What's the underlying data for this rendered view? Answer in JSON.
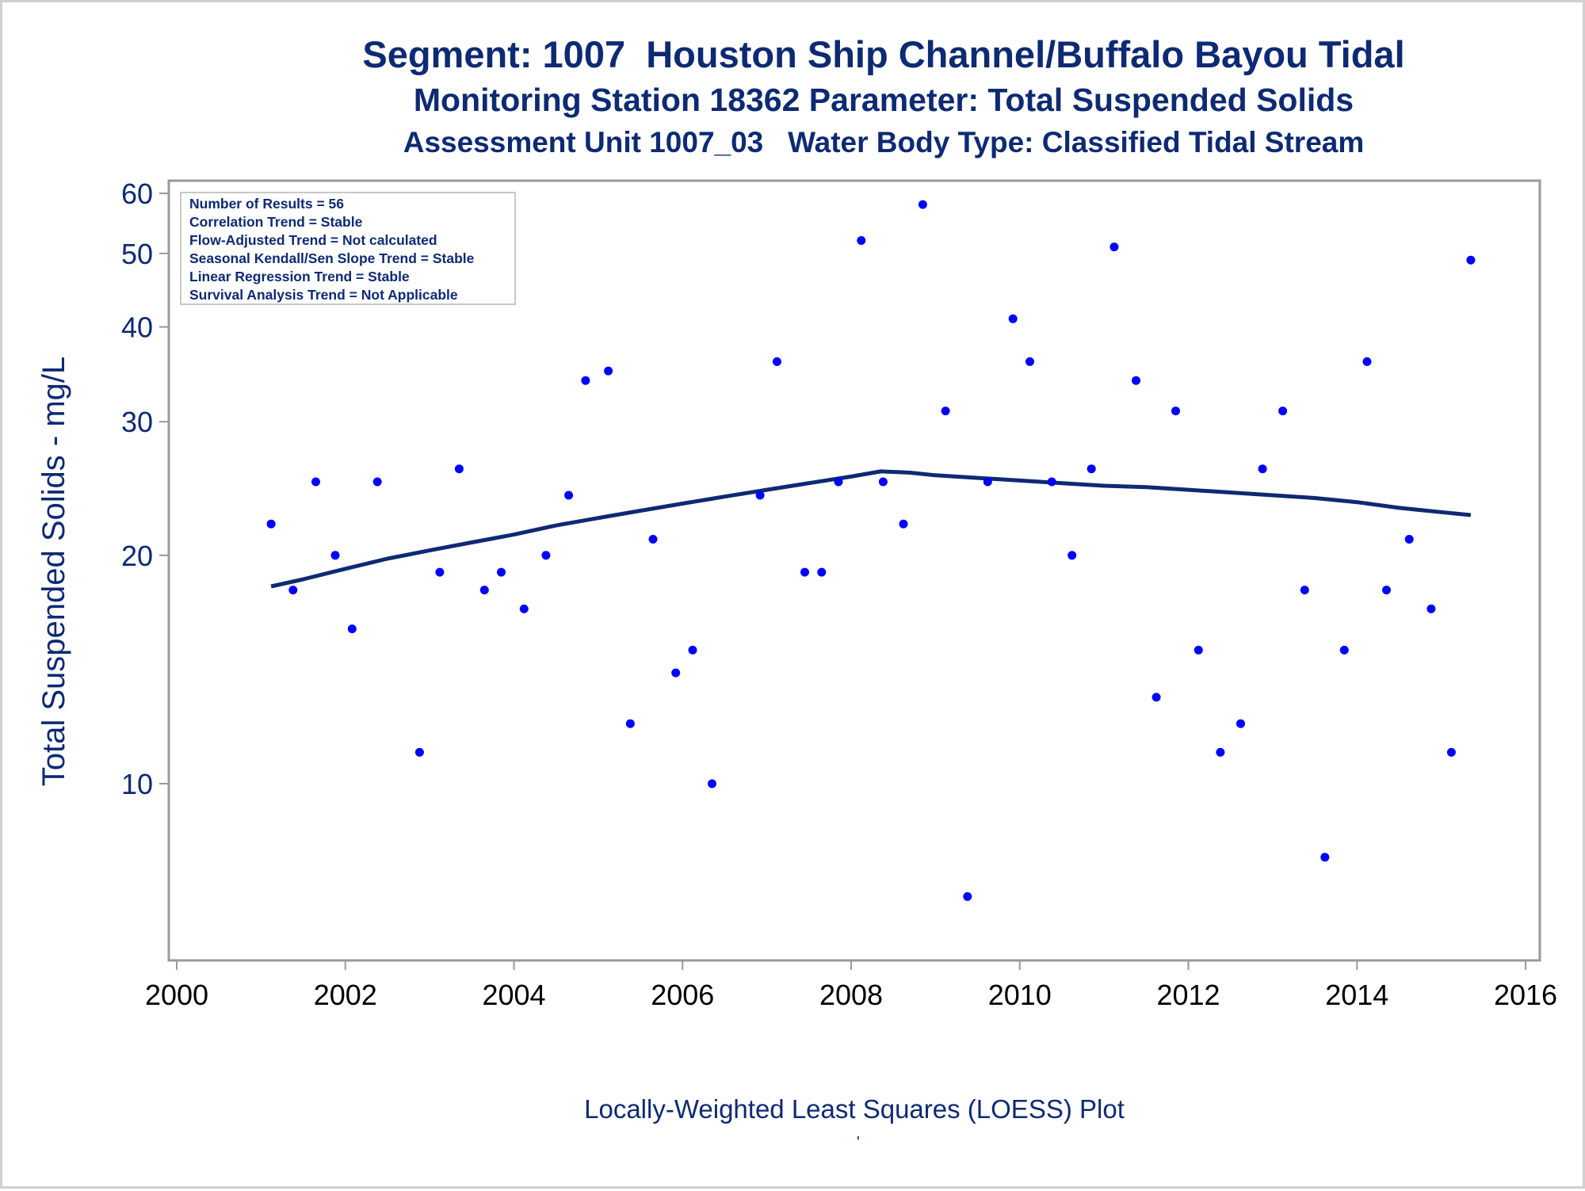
{
  "titles": {
    "line1": "Segment: 1007  Houston Ship Channel/Buffalo Bayou Tidal",
    "line2": "Monitoring Station 18362 Parameter: Total Suspended Solids",
    "line3": "Assessment Unit 1007_03   Water Body Type: Classified Tidal Stream"
  },
  "footnote": "Locally-Weighted Least Squares (LOESS) Plot",
  "footnote_mark": "'",
  "colors": {
    "text": "#0d2a73",
    "points": "#0000ff",
    "loess": "#0d2a73",
    "axis": "#9a9a9a"
  },
  "chart_data": {
    "type": "scatter",
    "xlabel": "",
    "ylabel": "Total Suspended Solids - mg/L",
    "y_scale": "log",
    "xlim": [
      2000,
      2016
    ],
    "ylim": [
      6.9,
      63
    ],
    "x_ticks": [
      2000,
      2002,
      2004,
      2006,
      2008,
      2010,
      2012,
      2014,
      2016
    ],
    "y_ticks": [
      10,
      20,
      30,
      40,
      50,
      60
    ],
    "info_box": [
      "Number of Results = 56",
      "Correlation Trend = Stable",
      "Flow-Adjusted Trend = Not calculated",
      "Seasonal Kendall/Sen Slope Trend = Stable",
      "Linear Regression Trend = Stable",
      "Survival Analysis Trend = Not Applicable"
    ],
    "legend_position": "top-left",
    "series": [
      {
        "type": "scatter",
        "points": [
          [
            2001.12,
            22
          ],
          [
            2001.38,
            18
          ],
          [
            2001.65,
            25
          ],
          [
            2001.88,
            20
          ],
          [
            2002.08,
            16
          ],
          [
            2002.38,
            25
          ],
          [
            2002.88,
            11
          ],
          [
            2003.12,
            19
          ],
          [
            2003.35,
            26
          ],
          [
            2003.65,
            18
          ],
          [
            2003.85,
            19
          ],
          [
            2004.12,
            17
          ],
          [
            2004.38,
            20
          ],
          [
            2004.65,
            24
          ],
          [
            2004.85,
            34
          ],
          [
            2005.12,
            35
          ],
          [
            2005.38,
            12
          ],
          [
            2005.65,
            21
          ],
          [
            2005.92,
            14
          ],
          [
            2006.12,
            15
          ],
          [
            2006.35,
            10
          ],
          [
            2006.92,
            24
          ],
          [
            2007.12,
            36
          ],
          [
            2007.45,
            19
          ],
          [
            2007.65,
            19
          ],
          [
            2007.85,
            25
          ],
          [
            2008.12,
            52
          ],
          [
            2008.38,
            25
          ],
          [
            2008.62,
            22
          ],
          [
            2008.85,
            58
          ],
          [
            2009.12,
            31
          ],
          [
            2009.38,
            7.1
          ],
          [
            2009.62,
            25
          ],
          [
            2009.92,
            41
          ],
          [
            2010.12,
            36
          ],
          [
            2010.38,
            25
          ],
          [
            2010.62,
            20
          ],
          [
            2010.85,
            26
          ],
          [
            2011.12,
            51
          ],
          [
            2011.38,
            34
          ],
          [
            2011.62,
            13
          ],
          [
            2011.85,
            31
          ],
          [
            2012.12,
            15
          ],
          [
            2012.38,
            11
          ],
          [
            2012.62,
            12
          ],
          [
            2012.88,
            26
          ],
          [
            2013.12,
            31
          ],
          [
            2013.38,
            18
          ],
          [
            2013.62,
            8
          ],
          [
            2013.85,
            15
          ],
          [
            2014.12,
            36
          ],
          [
            2014.35,
            18
          ],
          [
            2014.62,
            21
          ],
          [
            2014.88,
            17
          ],
          [
            2015.12,
            11
          ],
          [
            2015.35,
            49
          ]
        ]
      },
      {
        "type": "line",
        "points": [
          [
            2001.12,
            18.2
          ],
          [
            2001.5,
            18.6
          ],
          [
            2002.0,
            19.2
          ],
          [
            2002.5,
            19.8
          ],
          [
            2003.0,
            20.3
          ],
          [
            2003.5,
            20.8
          ],
          [
            2004.0,
            21.3
          ],
          [
            2004.5,
            21.9
          ],
          [
            2005.0,
            22.4
          ],
          [
            2005.5,
            22.9
          ],
          [
            2006.0,
            23.4
          ],
          [
            2006.5,
            23.9
          ],
          [
            2007.0,
            24.4
          ],
          [
            2007.5,
            24.9
          ],
          [
            2008.0,
            25.4
          ],
          [
            2008.35,
            25.8
          ],
          [
            2008.7,
            25.7
          ],
          [
            2009.0,
            25.5
          ],
          [
            2009.5,
            25.3
          ],
          [
            2010.0,
            25.1
          ],
          [
            2010.5,
            24.9
          ],
          [
            2011.0,
            24.7
          ],
          [
            2011.5,
            24.6
          ],
          [
            2012.0,
            24.4
          ],
          [
            2012.5,
            24.2
          ],
          [
            2013.0,
            24.0
          ],
          [
            2013.5,
            23.8
          ],
          [
            2014.0,
            23.5
          ],
          [
            2014.5,
            23.1
          ],
          [
            2015.0,
            22.8
          ],
          [
            2015.35,
            22.6
          ]
        ]
      }
    ]
  }
}
